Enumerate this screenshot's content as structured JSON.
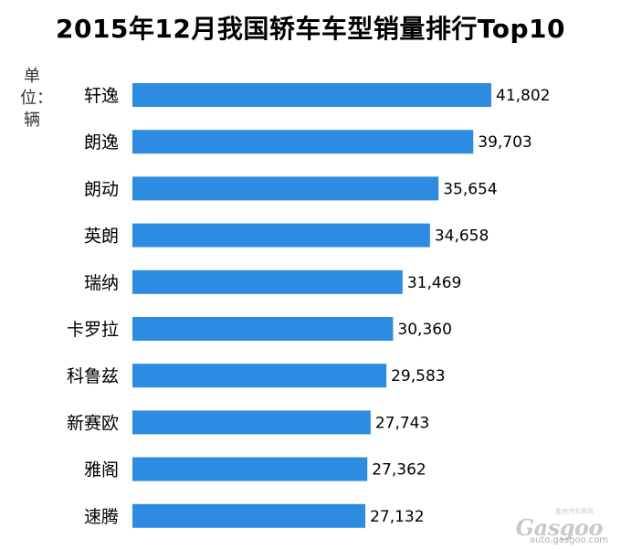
{
  "page": {
    "title": "2015年12月我国轿车车型销量排行Top10",
    "unit_label": "单位：辆"
  },
  "watermark": {
    "top_text": "盖世汽车资讯",
    "logo_text": "Gasgoo",
    "url_text": "auto.gasgoo.com"
  },
  "colors": {
    "bar": "#2e8be2"
  },
  "chart_data": {
    "type": "bar",
    "orientation": "horizontal",
    "title": "2015年12月我国轿车车型销量排行Top10",
    "ylabel": "单位：辆",
    "categories": [
      "轩逸",
      "朗逸",
      "朗动",
      "英朗",
      "瑞纳",
      "卡罗拉",
      "科鲁兹",
      "新赛欧",
      "雅阁",
      "速腾"
    ],
    "values": [
      41802,
      39703,
      35654,
      34658,
      31469,
      30360,
      29583,
      27743,
      27362,
      27132
    ],
    "value_labels": [
      "41,802",
      "39,703",
      "35,654",
      "34,658",
      "31,469",
      "30,360",
      "29,583",
      "27,743",
      "27,362",
      "27,132"
    ],
    "xlim": [
      0,
      41802
    ],
    "grid": false,
    "legend": "none"
  }
}
